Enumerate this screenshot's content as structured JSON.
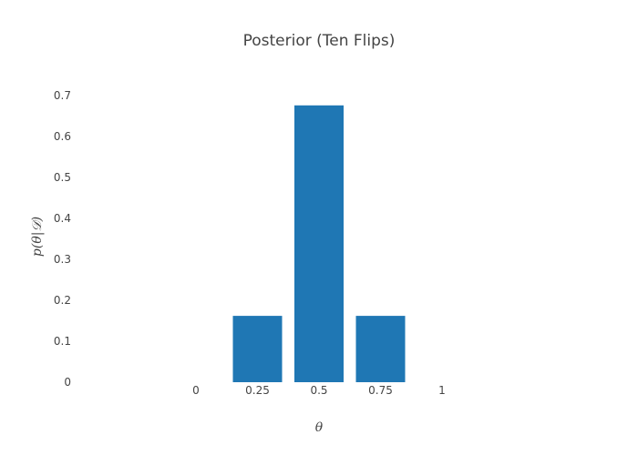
{
  "chart_data": {
    "type": "bar",
    "title": "Posterior (Ten Flips)",
    "xlabel": "θ",
    "ylabel": "p(θ|𝒟)",
    "x": [
      0,
      0.25,
      0.5,
      0.75,
      1
    ],
    "x_tick_labels": [
      "0",
      "0.25",
      "0.5",
      "0.75",
      "1"
    ],
    "values": [
      0,
      0.162,
      0.676,
      0.162,
      0
    ],
    "ylim": [
      0,
      0.7
    ],
    "y_ticks": [
      0,
      0.1,
      0.2,
      0.3,
      0.4,
      0.5,
      0.6,
      0.7
    ],
    "y_tick_labels": [
      "0",
      "0.1",
      "0.2",
      "0.3",
      "0.4",
      "0.5",
      "0.6",
      "0.7"
    ],
    "bar_color": "#1f77b4",
    "grid": false,
    "legend": "none"
  }
}
